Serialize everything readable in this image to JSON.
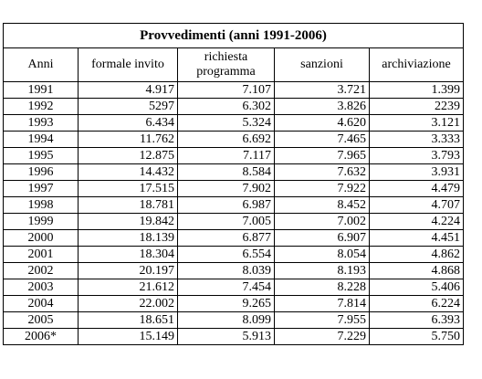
{
  "table": {
    "title": "Provvedimenti (anni 1991-2006)",
    "headers": [
      "Anni",
      "formale invito",
      "richiesta programma",
      "sanzioni",
      "archiviazione"
    ],
    "rows": [
      [
        "1991",
        "4.917",
        "7.107",
        "3.721",
        "1.399"
      ],
      [
        "1992",
        "5297",
        "6.302",
        "3.826",
        "2239"
      ],
      [
        "1993",
        "6.434",
        "5.324",
        "4.620",
        "3.121"
      ],
      [
        "1994",
        "11.762",
        "6.692",
        "7.465",
        "3.333"
      ],
      [
        "1995",
        "12.875",
        "7.117",
        "7.965",
        "3.793"
      ],
      [
        "1996",
        "14.432",
        "8.584",
        "7.632",
        "3.931"
      ],
      [
        "1997",
        "17.515",
        "7.902",
        "7.922",
        "4.479"
      ],
      [
        "1998",
        "18.781",
        "6.987",
        "8.452",
        "4.707"
      ],
      [
        "1999",
        "19.842",
        "7.005",
        "7.002",
        "4.224"
      ],
      [
        "2000",
        "18.139",
        "6.877",
        "6.907",
        "4.451"
      ],
      [
        "2001",
        "18.304",
        "6.554",
        "8.054",
        "4.862"
      ],
      [
        "2002",
        "20.197",
        "8.039",
        "8.193",
        "4.868"
      ],
      [
        "2003",
        "21.612",
        "7.454",
        "8.228",
        "5.406"
      ],
      [
        "2004",
        "22.002",
        "9.265",
        "7.814",
        "6.224"
      ],
      [
        "2005",
        "18.651",
        "8.099",
        "7.955",
        "6.393"
      ],
      [
        "2006*",
        "15.149",
        "5.913",
        "7.229",
        "5.750"
      ]
    ]
  }
}
